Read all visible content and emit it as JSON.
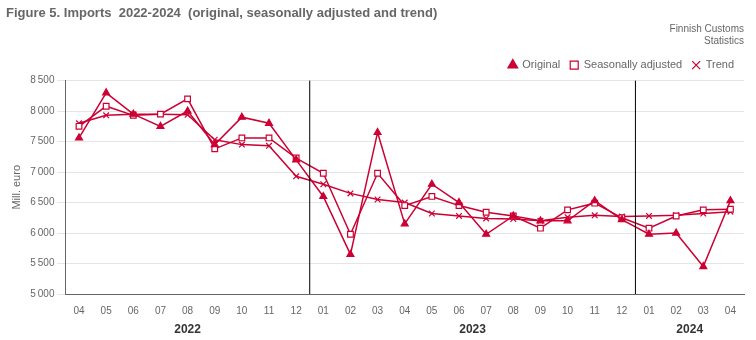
{
  "chart_data": {
    "type": "line",
    "title": "Figure 5. Imports  2022-2024  (original, seasonally adjusted and trend)",
    "subtitle": "Finnish Customs\nStatistics",
    "y_label": "Mill. euro",
    "categories": [
      "04",
      "05",
      "06",
      "07",
      "08",
      "09",
      "10",
      "11",
      "12",
      "01",
      "02",
      "03",
      "04",
      "05",
      "06",
      "07",
      "08",
      "09",
      "10",
      "11",
      "12",
      "01",
      "02",
      "03",
      "04"
    ],
    "annotations": [
      {
        "text": "2022",
        "from": 0,
        "to": 8
      },
      {
        "text": "2023",
        "from": 9,
        "to": 20
      },
      {
        "text": "2024",
        "from": 21,
        "to": 24
      }
    ],
    "series": [
      {
        "name": "Original",
        "color": "#cc0033",
        "marker": "triangle",
        "values": [
          7560,
          8300,
          7950,
          7750,
          8000,
          7450,
          7900,
          7800,
          7200,
          6600,
          5650,
          7650,
          6150,
          6800,
          6500,
          5980,
          6280,
          6200,
          6200,
          6530,
          6220,
          5980,
          6000,
          5450,
          6530
        ]
      },
      {
        "name": "Seasonally adjusted",
        "color": "#cc0033",
        "marker": "square",
        "values": [
          7750,
          8080,
          7930,
          7950,
          8200,
          7380,
          7560,
          7560,
          7230,
          6980,
          5980,
          6980,
          6450,
          6600,
          6450,
          6340,
          6280,
          6080,
          6380,
          6490,
          6250,
          6080,
          6280,
          6380,
          6390
        ]
      },
      {
        "name": "Trend",
        "color": "#cc0033",
        "marker": "x",
        "values": [
          7800,
          7930,
          7950,
          7950,
          7940,
          7530,
          7450,
          7430,
          6930,
          6800,
          6650,
          6550,
          6500,
          6320,
          6280,
          6240,
          6230,
          6200,
          6260,
          6290,
          6270,
          6280,
          6290,
          6320,
          6350
        ]
      }
    ],
    "ylim": [
      5000,
      8500
    ],
    "yticks": [
      {
        "value": 5000,
        "label": "5 000"
      },
      {
        "value": 5500,
        "label": "5 500"
      },
      {
        "value": 6000,
        "label": "6 000"
      },
      {
        "value": 6500,
        "label": "6 500"
      },
      {
        "value": 7000,
        "label": "7 000"
      },
      {
        "value": 7500,
        "label": "7 500"
      },
      {
        "value": 8000,
        "label": "8 000"
      },
      {
        "value": 8500,
        "label": "8 500"
      }
    ],
    "grid": true,
    "legend": "upper right"
  }
}
